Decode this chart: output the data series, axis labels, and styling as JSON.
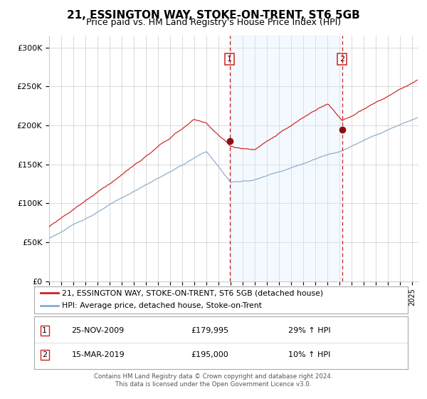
{
  "title": "21, ESSINGTON WAY, STOKE-ON-TRENT, ST6 5GB",
  "subtitle": "Price paid vs. HM Land Registry's House Price Index (HPI)",
  "title_fontsize": 11,
  "subtitle_fontsize": 9,
  "ylabel_ticks": [
    "£0",
    "£50K",
    "£100K",
    "£150K",
    "£200K",
    "£250K",
    "£300K"
  ],
  "ytick_values": [
    0,
    50000,
    100000,
    150000,
    200000,
    250000,
    300000
  ],
  "ylim": [
    0,
    315000
  ],
  "xlim_start": 1995.0,
  "xlim_end": 2025.5,
  "sale1_x": 2009.9,
  "sale1_y": 179995,
  "sale1_label": "1",
  "sale2_x": 2019.2,
  "sale2_y": 195000,
  "sale2_label": "2",
  "shade_x1": 2009.9,
  "shade_x2": 2019.2,
  "red_line_color": "#cc2222",
  "blue_line_color": "#88aacc",
  "dot_color": "#881111",
  "dashed_line_color": "#cc2222",
  "shade_color": "#ddeeff",
  "grid_color": "#cccccc",
  "background_color": "#ffffff",
  "legend_entries": [
    "21, ESSINGTON WAY, STOKE-ON-TRENT, ST6 5GB (detached house)",
    "HPI: Average price, detached house, Stoke-on-Trent"
  ],
  "annotation1_date": "25-NOV-2009",
  "annotation1_price": "£179,995",
  "annotation1_change": "29% ↑ HPI",
  "annotation2_date": "15-MAR-2019",
  "annotation2_price": "£195,000",
  "annotation2_change": "10% ↑ HPI",
  "footer1": "Contains HM Land Registry data © Crown copyright and database right 2024.",
  "footer2": "This data is licensed under the Open Government Licence v3.0."
}
